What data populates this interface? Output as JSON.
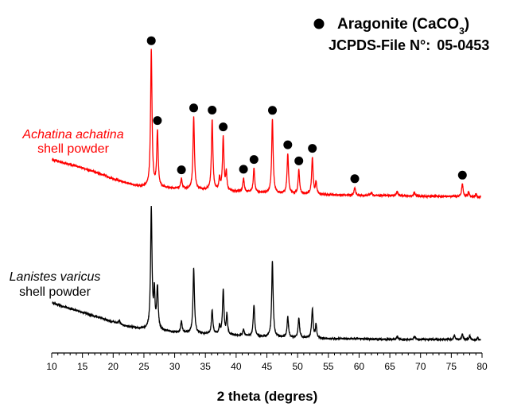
{
  "chart_data": {
    "type": "line",
    "title": "",
    "xlabel": "2 theta (degres)",
    "ylabel": "",
    "xlim": [
      10,
      80
    ],
    "x_ticks": [
      10,
      15,
      20,
      25,
      30,
      35,
      40,
      45,
      50,
      55,
      60,
      65,
      70,
      75,
      80
    ],
    "grid": false,
    "legend": {
      "marker": "filled-circle",
      "label_main": "Aragonite (CaCO",
      "label_subscript": "3",
      "label_close": ")",
      "file_label": "JCPDS-File N°:",
      "file_number": "05-0453"
    },
    "series": [
      {
        "name": "Achatina achatina",
        "subtitle": "shell powder",
        "color": "#ff0000",
        "label_color": "#ff0000",
        "baseline_points": [
          [
            10.1,
            52
          ],
          [
            12,
            48
          ],
          [
            15,
            42
          ],
          [
            18,
            34
          ],
          [
            20,
            28
          ],
          [
            22,
            23
          ],
          [
            24,
            19
          ],
          [
            25,
            18
          ],
          [
            27,
            17
          ],
          [
            30,
            16
          ],
          [
            35,
            14
          ],
          [
            40,
            12
          ],
          [
            45,
            10
          ],
          [
            50,
            9
          ],
          [
            55,
            8
          ],
          [
            60,
            7
          ],
          [
            65,
            7
          ],
          [
            70,
            6
          ],
          [
            75,
            6
          ],
          [
            79.8,
            5
          ]
        ],
        "peaks": [
          {
            "x": 26.2,
            "h": 172,
            "w": 0.14,
            "marker": true
          },
          {
            "x": 27.2,
            "h": 70,
            "w": 0.14,
            "marker": true
          },
          {
            "x": 31.1,
            "h": 12,
            "w": 0.14,
            "marker": true
          },
          {
            "x": 33.1,
            "h": 91,
            "w": 0.14,
            "marker": true
          },
          {
            "x": 36.1,
            "h": 89,
            "w": 0.14,
            "marker": true
          },
          {
            "x": 37.3,
            "h": 15,
            "w": 0.12,
            "marker": false
          },
          {
            "x": 37.9,
            "h": 67,
            "w": 0.14,
            "marker": true
          },
          {
            "x": 38.4,
            "h": 22,
            "w": 0.12,
            "marker": false
          },
          {
            "x": 41.2,
            "h": 17,
            "w": 0.14,
            "marker": true
          },
          {
            "x": 42.9,
            "h": 30,
            "w": 0.14,
            "marker": true
          },
          {
            "x": 45.9,
            "h": 93,
            "w": 0.14,
            "marker": true
          },
          {
            "x": 48.4,
            "h": 50,
            "w": 0.14,
            "marker": true
          },
          {
            "x": 50.2,
            "h": 30,
            "w": 0.14,
            "marker": true
          },
          {
            "x": 52.4,
            "h": 46,
            "w": 0.14,
            "marker": true
          },
          {
            "x": 53.0,
            "h": 15,
            "w": 0.12,
            "marker": false
          },
          {
            "x": 59.3,
            "h": 10,
            "w": 0.14,
            "marker": true
          },
          {
            "x": 62.0,
            "h": 4,
            "w": 0.14,
            "marker": false
          },
          {
            "x": 66.2,
            "h": 5,
            "w": 0.14,
            "marker": false
          },
          {
            "x": 69.0,
            "h": 5,
            "w": 0.14,
            "marker": false
          },
          {
            "x": 76.8,
            "h": 16,
            "w": 0.14,
            "marker": true
          },
          {
            "x": 77.8,
            "h": 6,
            "w": 0.12,
            "marker": false
          },
          {
            "x": 79.0,
            "h": 4,
            "w": 0.12,
            "marker": false
          }
        ]
      },
      {
        "name": "Lanistes varicus",
        "subtitle": "shell powder",
        "color": "#000000",
        "label_color": "#000000",
        "baseline_points": [
          [
            10.1,
            52
          ],
          [
            12,
            47
          ],
          [
            15,
            40
          ],
          [
            18,
            33
          ],
          [
            20,
            28
          ],
          [
            22,
            23
          ],
          [
            24,
            20
          ],
          [
            25,
            19
          ],
          [
            27,
            18
          ],
          [
            30,
            15
          ],
          [
            35,
            13
          ],
          [
            40,
            11
          ],
          [
            45,
            9
          ],
          [
            50,
            8
          ],
          [
            55,
            7
          ],
          [
            60,
            7
          ],
          [
            65,
            6
          ],
          [
            70,
            6
          ],
          [
            75,
            6
          ],
          [
            79.8,
            5
          ]
        ],
        "peaks": [
          {
            "x": 21.0,
            "h": 4,
            "w": 0.14,
            "marker": false
          },
          {
            "x": 26.2,
            "h": 152,
            "w": 0.14,
            "marker": false
          },
          {
            "x": 26.7,
            "h": 45,
            "w": 0.12,
            "marker": false
          },
          {
            "x": 27.2,
            "h": 53,
            "w": 0.14,
            "marker": false
          },
          {
            "x": 31.1,
            "h": 14,
            "w": 0.14,
            "marker": false
          },
          {
            "x": 33.1,
            "h": 82,
            "w": 0.14,
            "marker": false
          },
          {
            "x": 36.1,
            "h": 30,
            "w": 0.14,
            "marker": false
          },
          {
            "x": 37.3,
            "h": 10,
            "w": 0.12,
            "marker": false
          },
          {
            "x": 37.9,
            "h": 56,
            "w": 0.14,
            "marker": false
          },
          {
            "x": 38.5,
            "h": 25,
            "w": 0.12,
            "marker": false
          },
          {
            "x": 41.2,
            "h": 8,
            "w": 0.14,
            "marker": false
          },
          {
            "x": 42.9,
            "h": 40,
            "w": 0.14,
            "marker": false
          },
          {
            "x": 45.9,
            "h": 95,
            "w": 0.14,
            "marker": false
          },
          {
            "x": 48.4,
            "h": 26,
            "w": 0.14,
            "marker": false
          },
          {
            "x": 50.2,
            "h": 25,
            "w": 0.14,
            "marker": false
          },
          {
            "x": 52.4,
            "h": 37,
            "w": 0.14,
            "marker": false
          },
          {
            "x": 53.0,
            "h": 17,
            "w": 0.12,
            "marker": false
          },
          {
            "x": 66.2,
            "h": 4,
            "w": 0.14,
            "marker": false
          },
          {
            "x": 69.0,
            "h": 4,
            "w": 0.14,
            "marker": false
          },
          {
            "x": 75.5,
            "h": 5,
            "w": 0.14,
            "marker": false
          },
          {
            "x": 76.8,
            "h": 7,
            "w": 0.14,
            "marker": false
          },
          {
            "x": 78.0,
            "h": 5,
            "w": 0.12,
            "marker": false
          },
          {
            "x": 79.3,
            "h": 4,
            "w": 0.12,
            "marker": false
          }
        ]
      }
    ]
  }
}
